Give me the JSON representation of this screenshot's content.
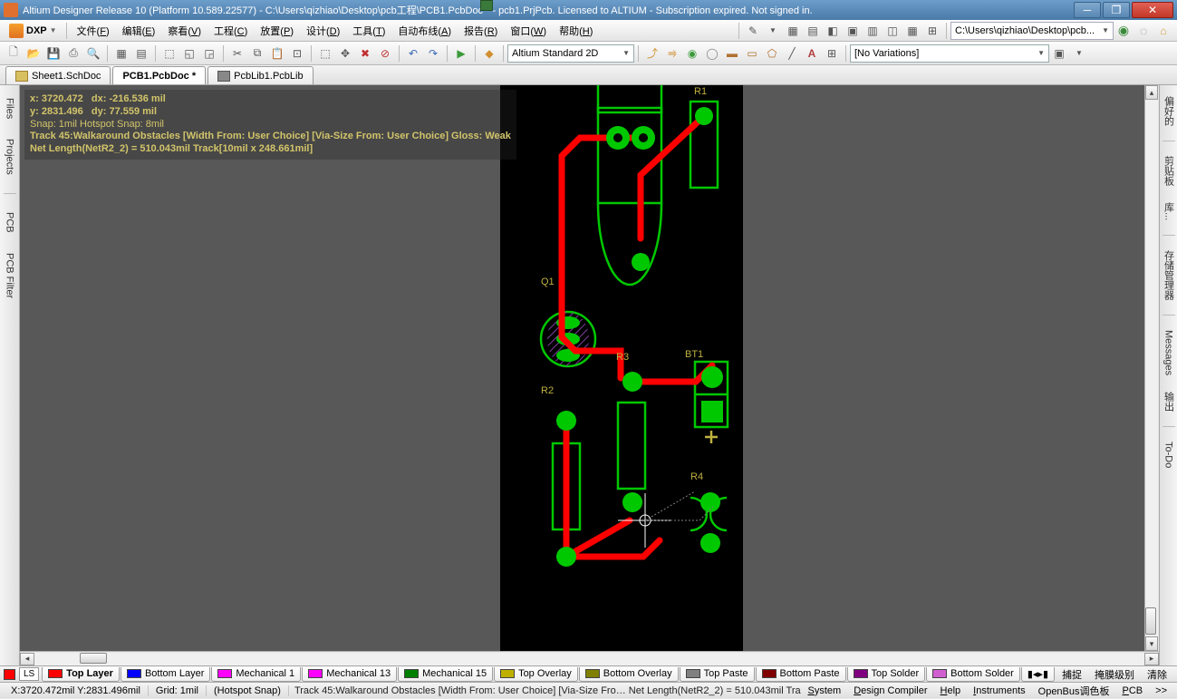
{
  "title": "Altium Designer Release 10 (Platform 10.589.22577) - C:\\Users\\qizhiao\\Desktop\\pcb工程\\PCB1.PcbDoc * - pcb1.PrjPcb. Licensed to ALTIUM - Subscription expired. Not signed in.",
  "colors": {
    "canvas_bg": "#585858",
    "pcb_bg": "#000000",
    "green": "#00c800",
    "dark_green": "#008000",
    "red": "#ff0000",
    "yellow": "#bfb040",
    "hud_text": "#d2c46a"
  },
  "menu": {
    "dxp": "DXP",
    "items": [
      {
        "label": "文件",
        "acc": "F"
      },
      {
        "label": "编辑",
        "acc": "E"
      },
      {
        "label": "察看",
        "acc": "V"
      },
      {
        "label": "工程",
        "acc": "C"
      },
      {
        "label": "放置",
        "acc": "P"
      },
      {
        "label": "设计",
        "acc": "D"
      },
      {
        "label": "工具",
        "acc": "T"
      },
      {
        "label": "自动布线",
        "acc": "A"
      },
      {
        "label": "报告",
        "acc": "R"
      },
      {
        "label": "窗口",
        "acc": "W"
      },
      {
        "label": "帮助",
        "acc": "H"
      }
    ],
    "path": "C:\\Users\\qizhiao\\Desktop\\pcb..."
  },
  "toolbar2": {
    "viewmode": "Altium Standard 2D",
    "variations": "[No Variations]"
  },
  "tabs": [
    {
      "label": "Sheet1.SchDoc",
      "type": "sch"
    },
    {
      "label": "PCB1.PcbDoc *",
      "type": "pcb",
      "active": true
    },
    {
      "label": "PcbLib1.PcbLib",
      "type": "lib"
    }
  ],
  "left_tabs": [
    "Files",
    "Projects",
    "PCB",
    "PCB Filter"
  ],
  "right_tabs": [
    "偏好的",
    "剪贴板",
    "库...",
    "存储管理器",
    "Messages",
    "输出",
    "To-Do"
  ],
  "hud": {
    "l1a": "x:  3720.472",
    "l1b": "dx:   -216.536 mil",
    "l2a": "y:  2831.496",
    "l2b": "dy:    77.559   mil",
    "l3": "Snap: 1mil Hotspot Snap: 8mil",
    "l4": "Track 45:Walkaround Obstacles [Width From: User Choice] [Via-Size From: User Choice] Gloss: Weak",
    "l5": "Net Length(NetR2_2) = 510.043mil  Track[10mil x 248.661mil]"
  },
  "designators": {
    "Q1": "Q1",
    "R1": "R1",
    "R2": "R2",
    "R3": "R3",
    "R4": "R4",
    "BT1": "BT1"
  },
  "layers": [
    {
      "name": "Top Layer",
      "color": "#ff0000",
      "active": true
    },
    {
      "name": "Bottom Layer",
      "color": "#0000ff"
    },
    {
      "name": "Mechanical 1",
      "color": "#ff00ff"
    },
    {
      "name": "Mechanical 13",
      "color": "#ff00ff"
    },
    {
      "name": "Mechanical 15",
      "color": "#008000"
    },
    {
      "name": "Top Overlay",
      "color": "#bfb000"
    },
    {
      "name": "Bottom Overlay",
      "color": "#808000"
    },
    {
      "name": "Top Paste",
      "color": "#808080"
    },
    {
      "name": "Bottom Paste",
      "color": "#800000"
    },
    {
      "name": "Top Solder",
      "color": "#800080"
    },
    {
      "name": "Bottom Solder",
      "color": "#d060d0"
    }
  ],
  "layer_ls": "LS",
  "context_items": [
    "捕捉",
    "掩膜级别",
    "清除"
  ],
  "status": {
    "coords": "X:3720.472mil Y:2831.496mil",
    "grid": "Grid:  1mil",
    "hotspot": "(Hotspot Snap)",
    "mid": "Track 45:Walkaround Obstacles [Width From: User Choice] [Via-Size Fro… Net Length(NetR2_2) = 510.043mil  Tra",
    "panels": [
      {
        "label": "System",
        "acc": "S"
      },
      {
        "label": "Design Compiler",
        "acc": "D"
      },
      {
        "label": "Help",
        "acc": "H"
      },
      {
        "label": "Instruments",
        "acc": "I"
      },
      {
        "label": "OpenBus调色板",
        "acc": ""
      },
      {
        "label": "PCB",
        "acc": "P"
      }
    ],
    "more": ">>"
  }
}
